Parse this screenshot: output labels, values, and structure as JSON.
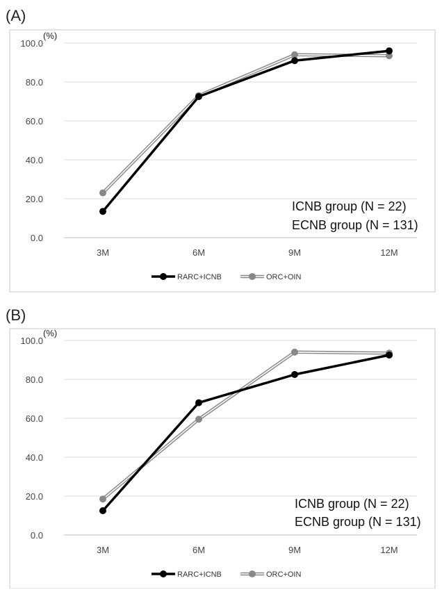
{
  "chart_data": [
    {
      "type": "line",
      "panel_label": "(A)",
      "unit_label": "(%)",
      "categories": [
        "3M",
        "6M",
        "9M",
        "12M"
      ],
      "y_ticks": [
        "0.0",
        "20.0",
        "40.0",
        "60.0",
        "80.0",
        "100.0"
      ],
      "ylim": [
        0,
        100
      ],
      "grid": true,
      "legend_position": "bottom",
      "annotations": [
        "ICNB group (N = 22)",
        "ECNB group (N = 131)"
      ],
      "series": [
        {
          "name": "RARC+ICNB",
          "values": [
            13.5,
            72.5,
            91.0,
            96.0
          ],
          "color": "#000000",
          "style": "solid"
        },
        {
          "name": "ORC+OIN",
          "values": [
            23.0,
            73.0,
            94.0,
            93.5
          ],
          "color": "#888888",
          "style": "double"
        }
      ]
    },
    {
      "type": "line",
      "panel_label": "(B)",
      "unit_label": "(%)",
      "categories": [
        "3M",
        "6M",
        "9M",
        "12M"
      ],
      "y_ticks": [
        "0.0",
        "20.0",
        "40.0",
        "60.0",
        "80.0",
        "100.0"
      ],
      "ylim": [
        0,
        100
      ],
      "grid": true,
      "legend_position": "bottom",
      "annotations": [
        "ICNB group (N = 22)",
        "ECNB group (N = 131)"
      ],
      "series": [
        {
          "name": "RARC+ICNB",
          "values": [
            12.5,
            68.0,
            82.5,
            92.5
          ],
          "color": "#000000",
          "style": "solid"
        },
        {
          "name": "ORC+OIN",
          "values": [
            18.5,
            59.5,
            94.0,
            93.5
          ],
          "color": "#888888",
          "style": "double"
        }
      ]
    }
  ]
}
